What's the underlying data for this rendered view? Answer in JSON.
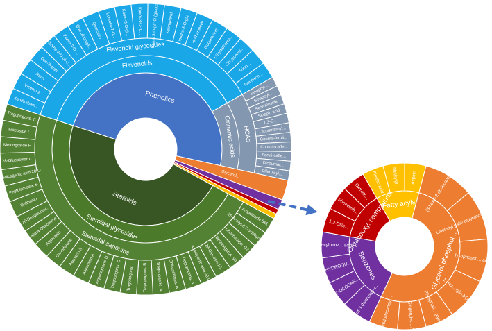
{
  "chart_data": [
    {
      "type": "sunburst",
      "nodes": [
        {
          "name": "Phenolics",
          "color": "#4472c4",
          "children": [
            {
              "name": "Flavonoids",
              "color": "#1aa7e8",
              "children": [
                {
                  "name": "Flavonoid glycosides",
                  "children": [
                    {
                      "name": "Xanthurham...",
                      "value": 6.6
                    },
                    {
                      "name": "Vicenin-2",
                      "value": 6.6
                    },
                    {
                      "name": "Rutin",
                      "value": 6.6
                    },
                    {
                      "name": "Que-3-arab",
                      "value": 6.6
                    },
                    {
                      "name": "Isorha-6-O-gluc...",
                      "value": 6.6
                    },
                    {
                      "name": "Kaem-3-O-...",
                      "value": 6.6
                    },
                    {
                      "name": "Que glucosyl...",
                      "value": 6.6
                    },
                    {
                      "name": "Quercetin",
                      "value": 6.6
                    },
                    {
                      "name": "Luteolin-7-O...",
                      "value": 6.6
                    },
                    {
                      "name": "Kaem-3-O-gl...",
                      "value": 6.6
                    },
                    {
                      "name": "Kaem-3-O-ru...",
                      "value": 6.6
                    },
                    {
                      "name": "Kaem 3-O-[2''-O-(glucosyl)]...",
                      "value": 6.6
                    },
                    {
                      "name": "Kaempferol",
                      "value": 6.6
                    },
                    {
                      "name": "Isorha-3-O-glu...",
                      "value": 6.6
                    },
                    {
                      "name": "Isorhamnetin",
                      "value": 6.6
                    },
                    {
                      "name": "Isoquercitrin",
                      "value": 6.6
                    },
                    {
                      "name": "Dihydrokaem...",
                      "value": 6.6
                    },
                    {
                      "name": "Chrysoeriol...",
                      "value": 6.6
                    },
                    {
                      "name": "Tricin...",
                      "value": 6.6
                    },
                    {
                      "name": "Isovitexin...",
                      "value": 6.6
                    }
                  ]
                }
              ]
            },
            {
              "name": "Cinnamic acids",
              "color": "#8497b0",
              "children": [
                {
                  "name": "HCAs",
                  "children": [
                    {
                      "name": "Sinapoyl...",
                      "value": 3.8
                    },
                    {
                      "name": "Sinapoyl...",
                      "value": 3.8
                    },
                    {
                      "name": "Scolymoside",
                      "value": 3.8
                    },
                    {
                      "name": "Sinapic acid",
                      "value": 3.8
                    },
                    {
                      "name": "1,3-O-...",
                      "value": 3.8
                    },
                    {
                      "name": "Dicoumaroyl...",
                      "value": 3.8
                    },
                    {
                      "name": "Couma-feruli...",
                      "value": 3.8
                    },
                    {
                      "name": "Couma-caffe...",
                      "value": 3.8
                    },
                    {
                      "name": "Feruli-caffe...",
                      "value": 3.8
                    },
                    {
                      "name": "Dicoumar...",
                      "value": 3.8
                    },
                    {
                      "name": "Diferuloyl...",
                      "value": 3.8
                    }
                  ]
                }
              ]
            }
          ]
        },
        {
          "name": "Glycerol...",
          "color": "#ed7d31",
          "value": 8
        },
        {
          "name": null,
          "color": "#7030a0",
          "value": 4
        },
        {
          "name": null,
          "color": "#c00000",
          "value": 2
        },
        {
          "name": null,
          "color": "#ffc000",
          "value": 2
        },
        {
          "name": "Steroids",
          "color": "#375623",
          "children": [
            {
              "name": "Steroidal glycosides",
              "color": "#4b7a2a",
              "children": [
                {
                  "name": "Steroidal saponins",
                  "color": "#548235",
                  "children": [
                    {
                      "name": "Ampeloside Bs1",
                      "value": 6.5
                    },
                    {
                      "name": "25-Acetyl-6,7-didehydro...",
                      "value": 6.5
                    },
                    {
                      "name": "Licoricesapo. G2",
                      "value": 6.5
                    },
                    {
                      "name": "Betavulgaros. VII",
                      "value": 6.5
                    },
                    {
                      "name": "28-Glucosyl-10...",
                      "value": 6.5
                    },
                    {
                      "name": "Androgenic acid 28-O...",
                      "value": 6.5
                    },
                    {
                      "name": "Tragopogons. A",
                      "value": 6.5
                    },
                    {
                      "name": "Chikusetsusa. IV",
                      "value": 6.5
                    },
                    {
                      "name": "Tragopogons. M",
                      "value": 6.5
                    },
                    {
                      "name": "Tragopogons. B",
                      "value": 6.5
                    },
                    {
                      "name": "Tragopogons. L",
                      "value": 6.5
                    },
                    {
                      "name": "Tragopogons. C",
                      "value": 6.5
                    },
                    {
                      "name": "Asparagoside D",
                      "value": 6.5
                    },
                    {
                      "name": "Asparanin A",
                      "value": 6.5
                    },
                    {
                      "name": "Avenacin II",
                      "value": 6.5
                    },
                    {
                      "name": "Ganoderone",
                      "value": 6.5
                    },
                    {
                      "name": "Asparanin",
                      "value": 6.5
                    },
                    {
                      "name": "alpha-Chaconine",
                      "value": 6.5
                    },
                    {
                      "name": "26-Desglucoav...",
                      "value": 6.5
                    },
                    {
                      "name": "Delthonin",
                      "value": 6.5
                    },
                    {
                      "name": "Phytolaccasa. B",
                      "value": 6.5
                    },
                    {
                      "name": "Medicagenic acid 28-O",
                      "value": 6.5
                    },
                    {
                      "name": "28-Glucosylaru...",
                      "value": 6.5
                    },
                    {
                      "name": "Melongoside H",
                      "value": 6.5
                    },
                    {
                      "name": "Elaeoside I",
                      "value": 6.5
                    },
                    {
                      "name": "Tragopogons. C",
                      "value": 6.5
                    }
                  ]
                }
              ]
            }
          ]
        }
      ]
    },
    {
      "type": "sunburst",
      "nodes": [
        {
          "name": "Fatty acyls",
          "color": "#ffc000",
          "children": [
            {
              "name": "Pinellic acid",
              "value": 15
            },
            {
              "name": "Methylgl...",
              "value": 15
            },
            {
              "name": "Aspirin",
              "value": 15
            }
          ]
        },
        {
          "name": "Glycerol phosphol...",
          "color": "#ed7d31",
          "children": [
            {
              "name": "[3-hexyl-2-dodecanoyl]-acid",
              "value": 35
            },
            {
              "name": "Linoleoyl galactopyranosyl glycerol",
              "value": 35
            },
            {
              "name": "lysophosph... acid",
              "value": 30
            },
            {
              "name": "1-Hex...-gly-3-(1'...",
              "value": 30
            },
            {
              "name": "Phosphati... glycerol",
              "value": 20
            },
            {
              "name": "Gingerglyc... A",
              "value": 20
            },
            {
              "name": "Glc6dodecanoyl...",
              "value": 20
            }
          ]
        },
        {
          "name": "Benzenes",
          "color": "#7030a0",
          "children": [
            {
              "name": "[5-acet-3-(hydroxy)-2...",
              "value": 21
            },
            {
              "name": "DOCOSAN...",
              "value": 18
            },
            {
              "name": "HYDROQU...",
              "value": 18
            },
            {
              "name": "Decylbenz... acid",
              "value": 18
            }
          ]
        },
        {
          "name": "Organooxy. compounds",
          "color": "#c00000",
          "children": [
            {
              "name": "1,2-Dilin...",
              "value": 17
            },
            {
              "name": "Phenyleth...",
              "value": 17
            },
            {
              "name": "Oxmeth...",
              "value": 16
            }
          ]
        }
      ]
    }
  ]
}
